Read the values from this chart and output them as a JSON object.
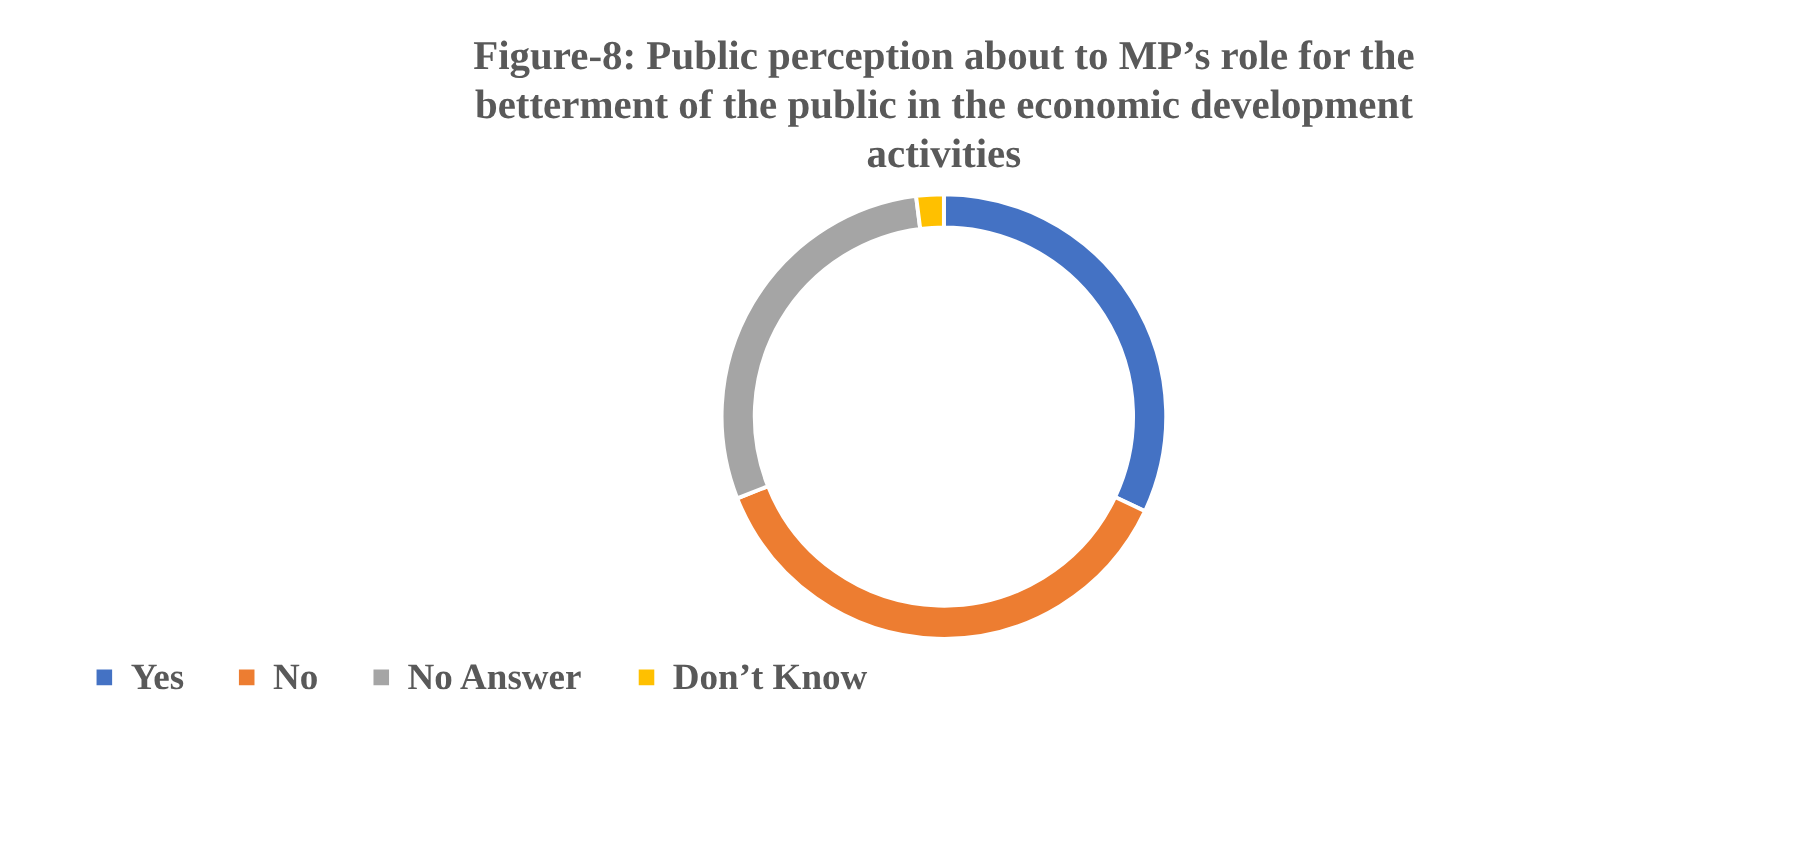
{
  "chart_data": {
    "type": "donut",
    "title": "Figure-8: Public perception about to MP’s role for the betterment of the public in the economic development activities",
    "categories": [
      "Yes",
      "No",
      "No Answer",
      "Don’t Know"
    ],
    "values": [
      32,
      37,
      29,
      2
    ],
    "colors": [
      "#4472c4",
      "#ed7d31",
      "#a5a5a5",
      "#ffc000"
    ],
    "legend": "bottom"
  }
}
